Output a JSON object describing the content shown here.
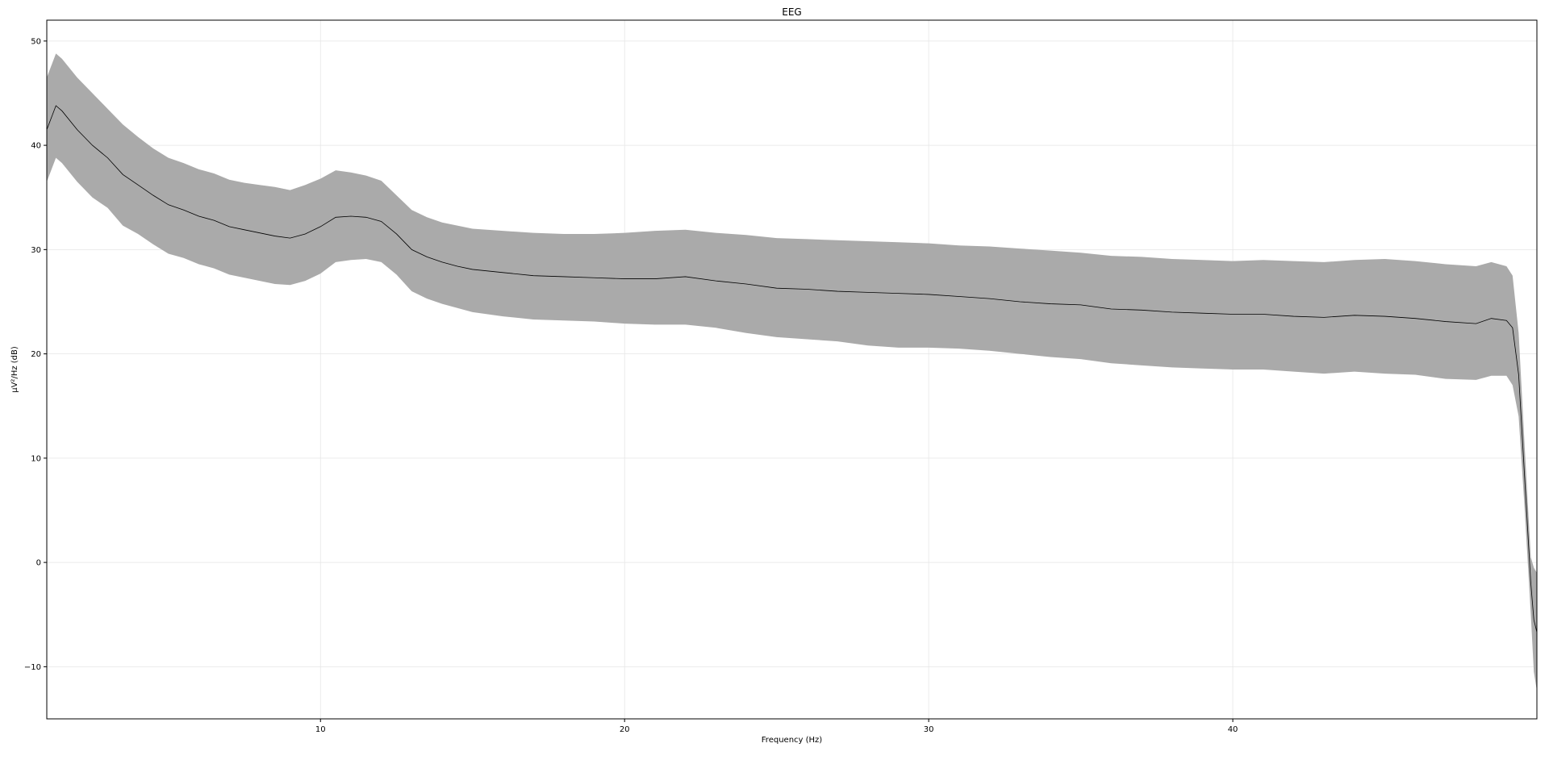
{
  "chart_data": {
    "type": "area",
    "title": "EEG",
    "xlabel": "Frequency (Hz)",
    "ylabel": "µV²/Hz (dB)",
    "xlim": [
      1,
      50
    ],
    "ylim": [
      -15,
      52
    ],
    "x_ticks": [
      10,
      20,
      30,
      40
    ],
    "y_ticks": [
      50,
      40,
      30,
      20,
      10,
      0,
      -10
    ],
    "x_tick_labels": [
      "10",
      "20",
      "30",
      "40"
    ],
    "y_tick_labels": [
      "50",
      "40",
      "30",
      "20",
      "10",
      "0",
      "−10"
    ],
    "grid": true,
    "colors": {
      "mean_line": "#000000",
      "band_fill": "#aaaaaa",
      "grid": "#e6e6e6",
      "axes": "#000000"
    },
    "series": [
      {
        "role": "mean",
        "x": [
          1,
          1.3,
          1.5,
          2,
          2.5,
          3,
          3.5,
          4,
          4.5,
          5,
          5.5,
          6,
          6.5,
          7,
          7.5,
          8,
          8.5,
          9,
          9.5,
          10,
          10.5,
          11,
          11.5,
          12,
          12.5,
          13,
          13.5,
          14,
          14.5,
          15,
          16,
          17,
          18,
          19,
          20,
          21,
          22,
          23,
          24,
          25,
          26,
          27,
          28,
          29,
          30,
          31,
          32,
          33,
          34,
          35,
          36,
          37,
          38,
          39,
          40,
          41,
          42,
          43,
          44,
          45,
          46,
          47,
          48,
          48.5,
          49,
          49.2,
          49.4,
          49.6,
          49.8,
          49.9,
          50
        ],
        "y": [
          41.5,
          43.8,
          43.3,
          41.5,
          40,
          38.8,
          37.2,
          36.2,
          35.2,
          34.3,
          33.8,
          33.2,
          32.8,
          32.2,
          31.9,
          31.6,
          31.3,
          31.1,
          31.5,
          32.2,
          33.1,
          33.2,
          33.1,
          32.7,
          31.5,
          30.0,
          29.3,
          28.8,
          28.4,
          28.1,
          27.8,
          27.5,
          27.4,
          27.3,
          27.2,
          27.2,
          27.4,
          27.0,
          26.7,
          26.3,
          26.2,
          26.0,
          25.9,
          25.8,
          25.7,
          25.5,
          25.3,
          25.0,
          24.8,
          24.7,
          24.3,
          24.2,
          24.0,
          23.9,
          23.8,
          23.8,
          23.6,
          23.5,
          23.7,
          23.6,
          23.4,
          23.1,
          22.9,
          23.4,
          23.2,
          22.5,
          18.0,
          8.0,
          -2.0,
          -5.5,
          -6.7
        ]
      },
      {
        "role": "upper",
        "x": [
          1,
          1.3,
          1.5,
          2,
          2.5,
          3,
          3.5,
          4,
          4.5,
          5,
          5.5,
          6,
          6.5,
          7,
          7.5,
          8,
          8.5,
          9,
          9.5,
          10,
          10.5,
          11,
          11.5,
          12,
          12.5,
          13,
          13.5,
          14,
          14.5,
          15,
          16,
          17,
          18,
          19,
          20,
          21,
          22,
          23,
          24,
          25,
          26,
          27,
          28,
          29,
          30,
          31,
          32,
          33,
          34,
          35,
          36,
          37,
          38,
          39,
          40,
          41,
          42,
          43,
          44,
          45,
          46,
          47,
          48,
          48.5,
          49,
          49.2,
          49.4,
          49.6,
          49.8,
          49.9,
          50
        ],
        "y": [
          46.5,
          48.8,
          48.3,
          46.5,
          45.0,
          43.5,
          42.0,
          40.8,
          39.7,
          38.8,
          38.3,
          37.7,
          37.3,
          36.7,
          36.4,
          36.2,
          36.0,
          35.7,
          36.2,
          36.8,
          37.6,
          37.4,
          37.1,
          36.6,
          35.2,
          33.8,
          33.1,
          32.6,
          32.3,
          32.0,
          31.8,
          31.6,
          31.5,
          31.5,
          31.6,
          31.8,
          31.9,
          31.6,
          31.4,
          31.1,
          31.0,
          30.9,
          30.8,
          30.7,
          30.6,
          30.4,
          30.3,
          30.1,
          29.9,
          29.7,
          29.4,
          29.3,
          29.1,
          29.0,
          28.9,
          29.0,
          28.9,
          28.8,
          29.0,
          29.1,
          28.9,
          28.6,
          28.4,
          28.8,
          28.4,
          27.5,
          22.0,
          11.0,
          0.5,
          -0.5,
          -1.0
        ]
      },
      {
        "role": "lower",
        "x": [
          1,
          1.3,
          1.5,
          2,
          2.5,
          3,
          3.5,
          4,
          4.5,
          5,
          5.5,
          6,
          6.5,
          7,
          7.5,
          8,
          8.5,
          9,
          9.5,
          10,
          10.5,
          11,
          11.5,
          12,
          12.5,
          13,
          13.5,
          14,
          14.5,
          15,
          16,
          17,
          18,
          19,
          20,
          21,
          22,
          23,
          24,
          25,
          26,
          27,
          28,
          29,
          30,
          31,
          32,
          33,
          34,
          35,
          36,
          37,
          38,
          39,
          40,
          41,
          42,
          43,
          44,
          45,
          46,
          47,
          48,
          48.5,
          49,
          49.2,
          49.4,
          49.6,
          49.8,
          49.9,
          50
        ],
        "y": [
          36.5,
          38.8,
          38.3,
          36.5,
          35.0,
          34.0,
          32.3,
          31.5,
          30.5,
          29.6,
          29.2,
          28.6,
          28.2,
          27.6,
          27.3,
          27.0,
          26.7,
          26.6,
          27.0,
          27.7,
          28.8,
          29.0,
          29.1,
          28.8,
          27.6,
          26.0,
          25.3,
          24.8,
          24.4,
          24.0,
          23.6,
          23.3,
          23.2,
          23.1,
          22.9,
          22.8,
          22.8,
          22.5,
          22.0,
          21.6,
          21.4,
          21.2,
          20.8,
          20.6,
          20.6,
          20.5,
          20.3,
          20.0,
          19.7,
          19.5,
          19.1,
          18.9,
          18.7,
          18.6,
          18.5,
          18.5,
          18.3,
          18.1,
          18.3,
          18.1,
          18.0,
          17.6,
          17.5,
          17.9,
          17.9,
          17.0,
          14.0,
          5.0,
          -5.0,
          -10.5,
          -12.3
        ]
      }
    ]
  }
}
